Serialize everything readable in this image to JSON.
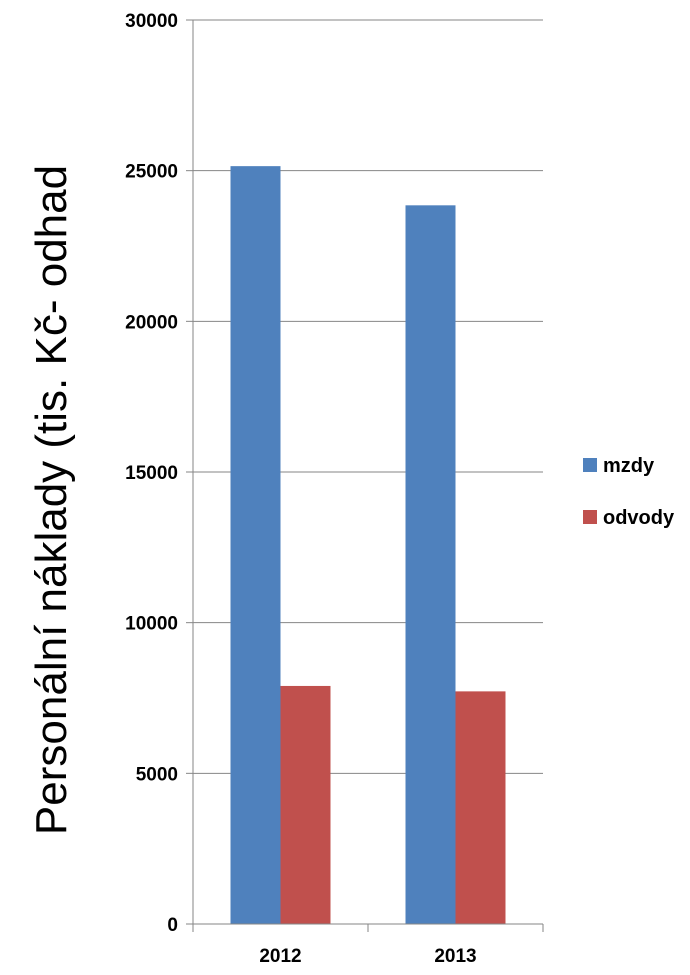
{
  "chart_data": {
    "type": "bar",
    "categories": [
      "2012",
      "2013"
    ],
    "series": [
      {
        "name": "mzdy",
        "values": [
          25150,
          23850
        ],
        "color": "#4F81BD"
      },
      {
        "name": "odvody",
        "values": [
          7900,
          7720
        ],
        "color": "#C0504D"
      }
    ],
    "ylabel": "Personální náklady (tis. Kč- odhad",
    "xlabel": "",
    "ylim": [
      0,
      30000
    ],
    "yticks": [
      "0",
      "5000",
      "10000",
      "15000",
      "20000",
      "25000",
      "30000"
    ],
    "grid": true,
    "legend": "right"
  }
}
